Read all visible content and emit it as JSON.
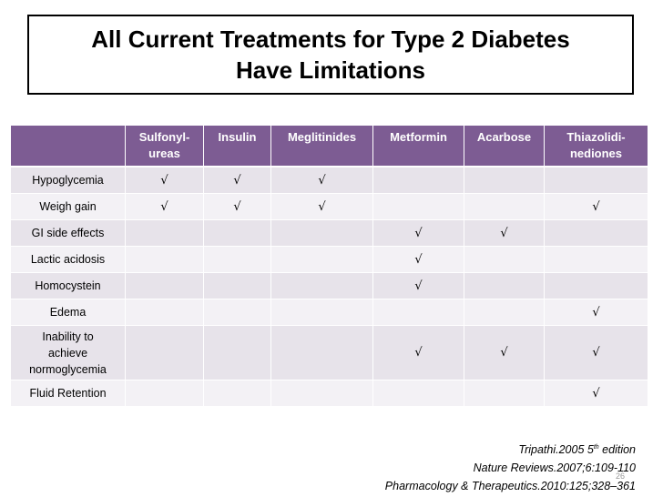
{
  "title": {
    "line1": "All Current Treatments for Type 2 Diabetes",
    "line2": "Have Limitations"
  },
  "table": {
    "columns": [
      "",
      "Sulfonyl-ureas",
      "Insulin",
      "Meglitinides",
      "Metformin",
      "Acarbose",
      "Thiazolidi-nediones"
    ],
    "column_lines": [
      [
        "",
        ""
      ],
      [
        "Sulfonyl-",
        "ureas"
      ],
      [
        "Insulin",
        ""
      ],
      [
        "Meglitinides",
        ""
      ],
      [
        "Metformin",
        ""
      ],
      [
        "Acarbose",
        ""
      ],
      [
        "Thiazolidi-",
        "nediones"
      ]
    ],
    "check_symbol": "√",
    "rows": [
      {
        "label_lines": [
          "Hypoglycemia"
        ],
        "cells": [
          "√",
          "√",
          "√",
          "",
          "",
          ""
        ]
      },
      {
        "label_lines": [
          "Weigh gain"
        ],
        "cells": [
          "√",
          "√",
          "√",
          "",
          "",
          "√"
        ]
      },
      {
        "label_lines": [
          "GI side effects"
        ],
        "cells": [
          "",
          "",
          "",
          "√",
          "√",
          ""
        ]
      },
      {
        "label_lines": [
          "Lactic acidosis"
        ],
        "cells": [
          "",
          "",
          "",
          "√",
          "",
          ""
        ]
      },
      {
        "label_lines": [
          "Homocystein"
        ],
        "cells": [
          "",
          "",
          "",
          "√",
          "",
          ""
        ]
      },
      {
        "label_lines": [
          "Edema"
        ],
        "cells": [
          "",
          "",
          "",
          "",
          "",
          "√"
        ]
      },
      {
        "label_lines": [
          "Inability to",
          "achieve",
          "normoglycemia"
        ],
        "cells": [
          "",
          "",
          "",
          "√",
          "√",
          "√"
        ]
      },
      {
        "label_lines": [
          "Fluid Retention"
        ],
        "cells": [
          "",
          "",
          "",
          "",
          "",
          "√"
        ]
      }
    ]
  },
  "citations": {
    "line1_pre": "Tripathi.2005  5",
    "line1_sup": "th",
    "line1_post": "  edition",
    "line2": "Nature Reviews.2007;6:109-110",
    "line3": "Pharmacology & Therapeutics.2010:125;328–361"
  },
  "page_number": "26",
  "colors": {
    "header_bg": "#7d5c93",
    "row_odd": "#e7e3ea",
    "row_even": "#f3f1f5"
  }
}
